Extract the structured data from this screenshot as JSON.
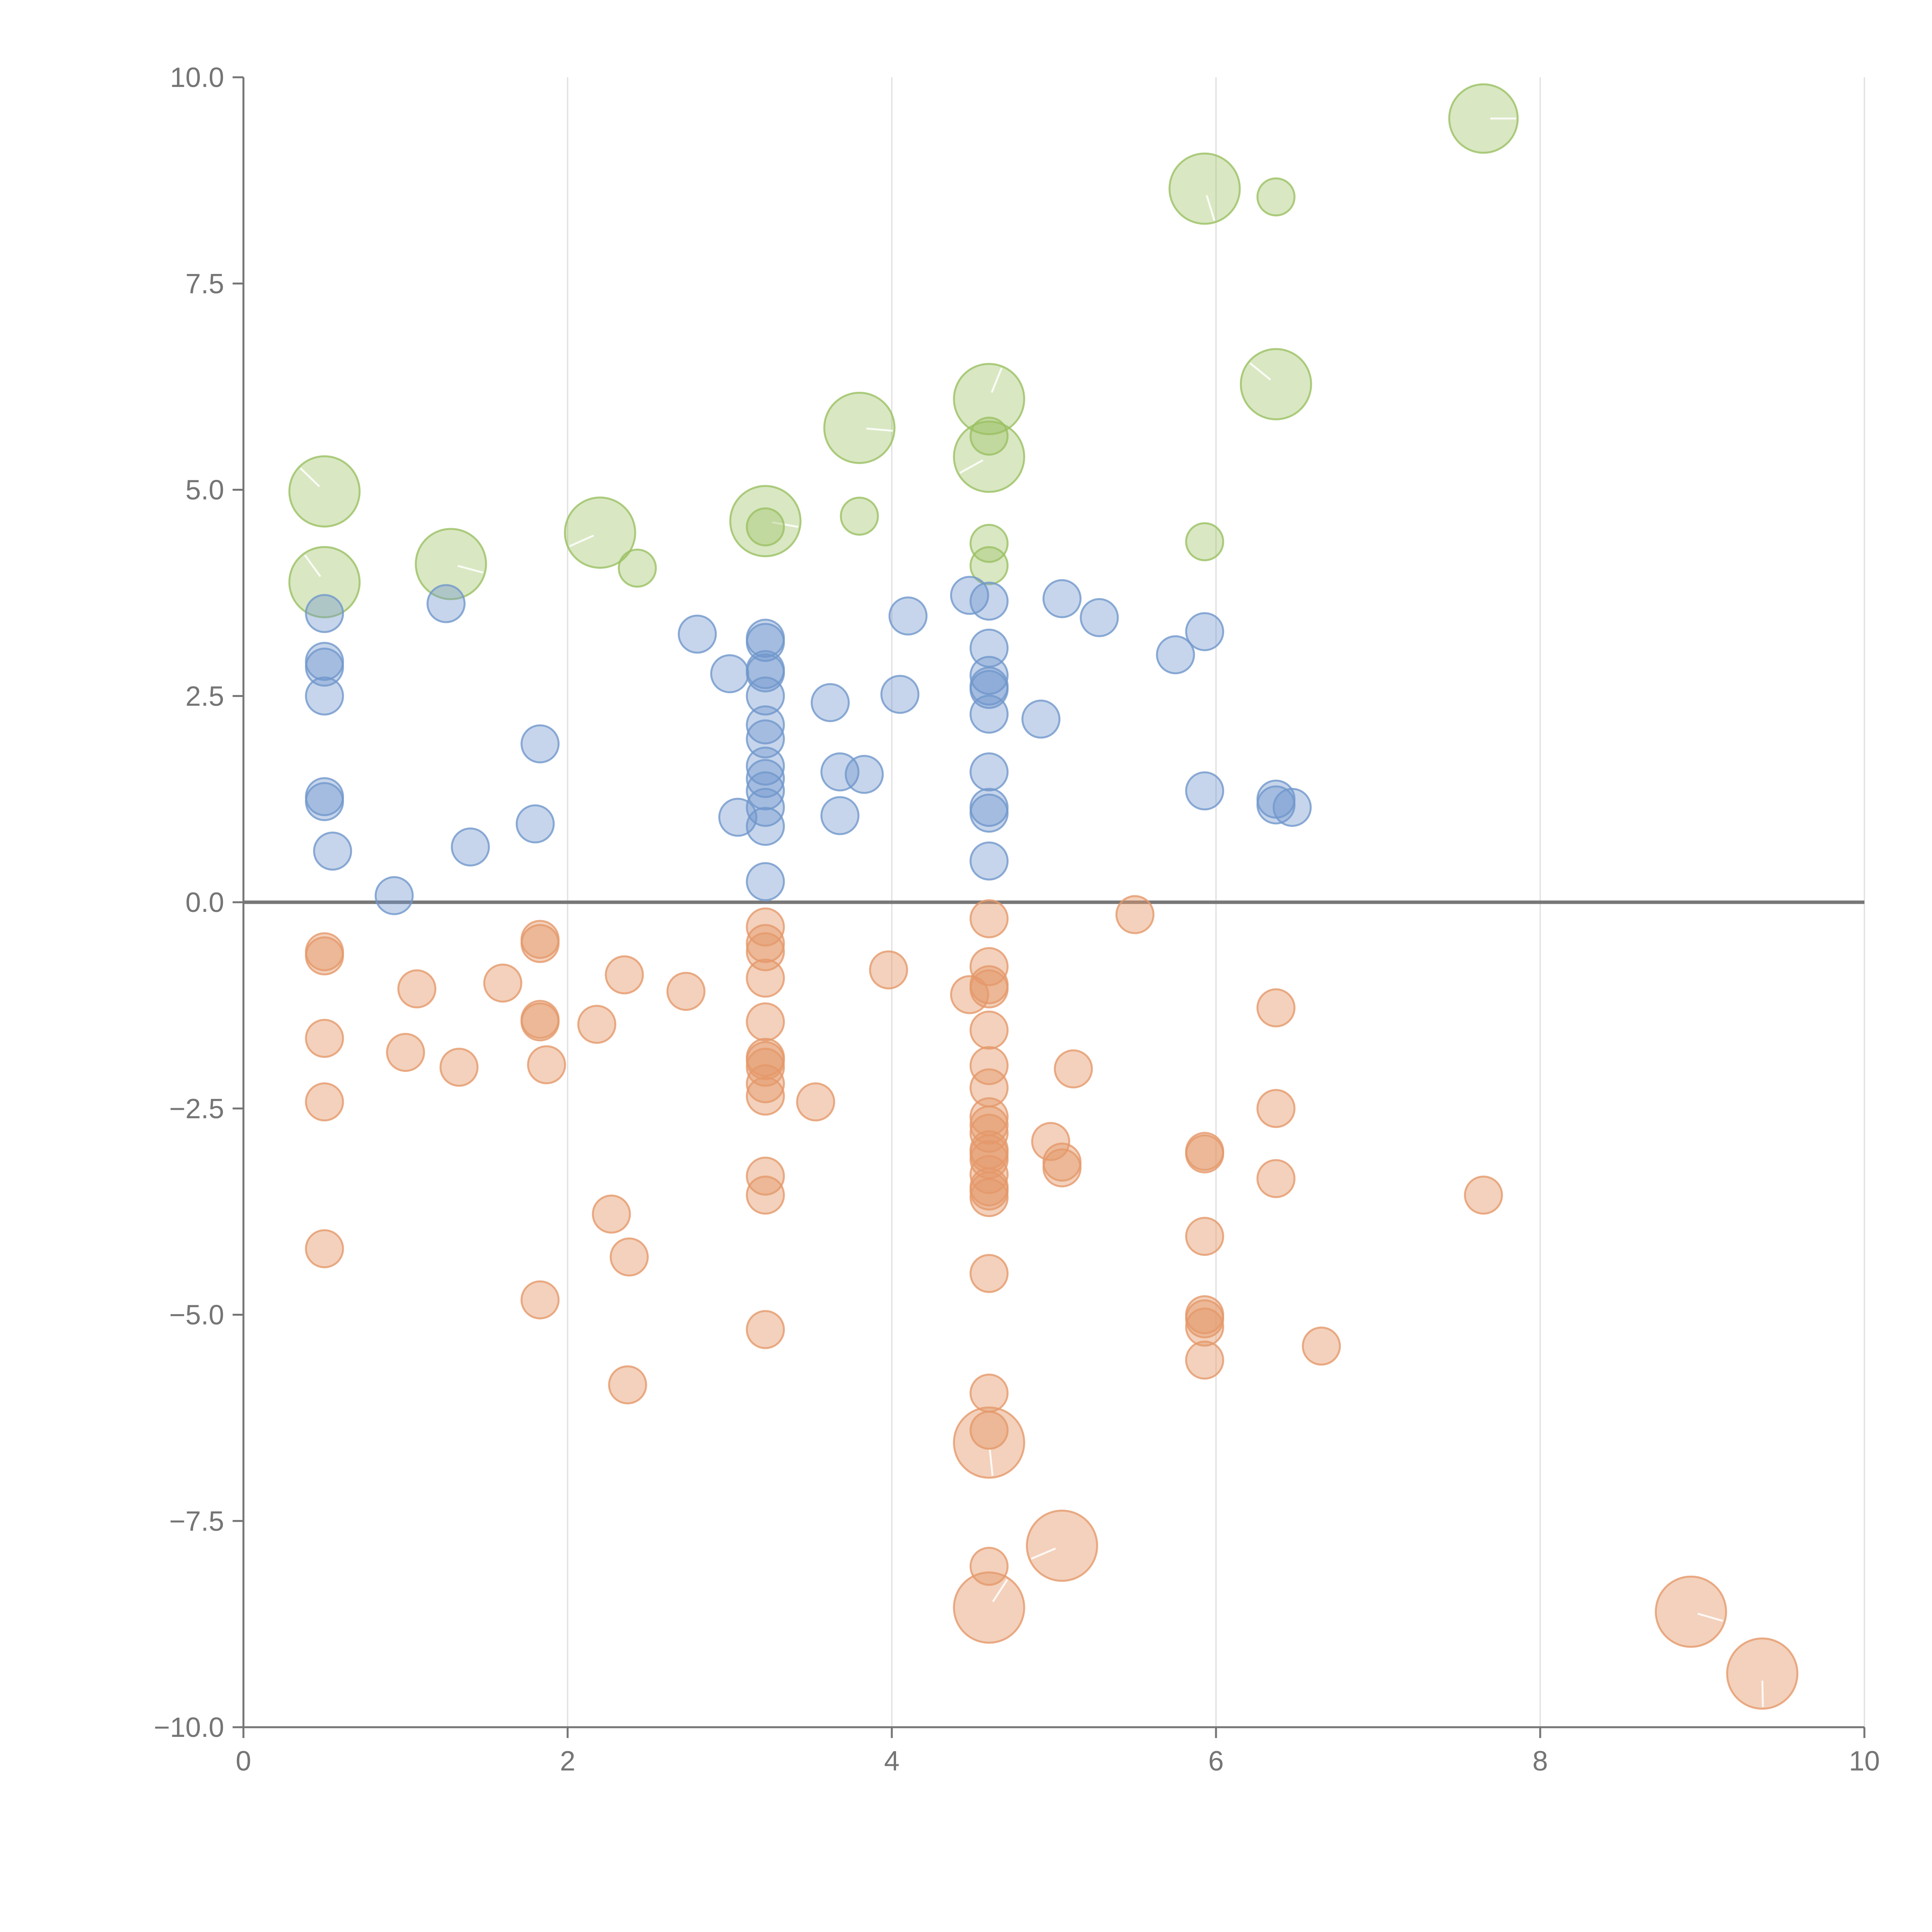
{
  "chart_data": {
    "type": "scatter",
    "title": "",
    "xlabel": "",
    "ylabel": "",
    "xlim": [
      0,
      10
    ],
    "ylim": [
      -10,
      10
    ],
    "x_ticks": [
      0,
      2,
      4,
      6,
      8,
      10
    ],
    "x_tick_labels": [
      "0",
      "2",
      "4",
      "6",
      "8",
      "10"
    ],
    "y_ticks": [
      10,
      7.5,
      5,
      2.5,
      0,
      -2.5,
      -5,
      -7.5,
      -10
    ],
    "y_tick_labels": [
      "10.0",
      "7.5",
      "5.0",
      "2.5",
      "0.0",
      "−2.5",
      "−5.0",
      "−7.5",
      "−10.0"
    ],
    "vertical_grid": true,
    "horizontal_grid": false,
    "reference_line_y": 0,
    "size_scale": "relative bubble size, 1 = smallest",
    "series": [
      {
        "name": "green",
        "color": "#9ac061",
        "fill_opacity": 0.38,
        "points": [
          [
            7.65,
            9.5,
            1.9
          ],
          [
            5.93,
            8.65,
            2.0
          ],
          [
            6.37,
            8.55,
            1.0
          ],
          [
            6.37,
            6.28,
            2.0
          ],
          [
            4.6,
            6.1,
            2.0
          ],
          [
            3.8,
            5.75,
            2.0
          ],
          [
            4.6,
            5.65,
            1.0
          ],
          [
            4.6,
            5.4,
            2.0
          ],
          [
            0.5,
            4.98,
            2.0
          ],
          [
            3.8,
            4.68,
            1.0
          ],
          [
            3.22,
            4.62,
            2.0
          ],
          [
            3.22,
            4.55,
            1.0
          ],
          [
            2.2,
            4.48,
            2.0
          ],
          [
            4.6,
            4.35,
            1.0
          ],
          [
            5.93,
            4.37,
            1.0
          ],
          [
            1.28,
            4.1,
            2.0
          ],
          [
            4.6,
            4.08,
            1.0
          ],
          [
            2.43,
            4.05,
            1.0
          ],
          [
            0.5,
            3.88,
            2.0
          ]
        ]
      },
      {
        "name": "blue",
        "color": "#7197cc",
        "fill_opacity": 0.4,
        "points": [
          [
            4.48,
            3.72,
            1.0
          ],
          [
            5.05,
            3.68,
            1.0
          ],
          [
            4.6,
            3.65,
            1.0
          ],
          [
            1.25,
            3.62,
            1.0
          ],
          [
            0.5,
            3.5,
            1.0
          ],
          [
            4.1,
            3.47,
            1.0
          ],
          [
            5.28,
            3.45,
            1.0
          ],
          [
            5.93,
            3.28,
            1.0
          ],
          [
            2.8,
            3.25,
            1.0
          ],
          [
            3.22,
            3.2,
            1.0
          ],
          [
            3.22,
            3.15,
            1.0
          ],
          [
            4.6,
            3.08,
            1.0
          ],
          [
            5.75,
            3.0,
            1.0
          ],
          [
            0.5,
            2.92,
            1.0
          ],
          [
            0.5,
            2.85,
            1.0
          ],
          [
            3.22,
            2.82,
            1.0
          ],
          [
            3.22,
            2.78,
            1.0
          ],
          [
            3.0,
            2.77,
            1.0
          ],
          [
            4.6,
            2.75,
            1.0
          ],
          [
            4.6,
            2.62,
            1.0
          ],
          [
            4.6,
            2.58,
            1.0
          ],
          [
            4.05,
            2.52,
            1.0
          ],
          [
            0.5,
            2.5,
            1.0
          ],
          [
            3.22,
            2.5,
            1.0
          ],
          [
            3.62,
            2.42,
            1.0
          ],
          [
            4.6,
            2.28,
            1.0
          ],
          [
            4.92,
            2.22,
            1.0
          ],
          [
            3.22,
            2.15,
            1.0
          ],
          [
            3.22,
            1.98,
            1.0
          ],
          [
            1.83,
            1.92,
            1.0
          ],
          [
            3.22,
            1.65,
            1.0
          ],
          [
            4.6,
            1.58,
            1.0
          ],
          [
            3.68,
            1.58,
            1.0
          ],
          [
            3.83,
            1.55,
            1.0
          ],
          [
            3.22,
            1.5,
            1.0
          ],
          [
            3.22,
            1.35,
            1.0
          ],
          [
            5.93,
            1.35,
            1.0
          ],
          [
            0.5,
            1.28,
            1.0
          ],
          [
            6.37,
            1.25,
            1.0
          ],
          [
            0.5,
            1.22,
            1.0
          ],
          [
            6.37,
            1.18,
            1.0
          ],
          [
            6.47,
            1.15,
            1.0
          ],
          [
            3.22,
            1.15,
            1.0
          ],
          [
            4.6,
            1.15,
            1.0
          ],
          [
            4.6,
            1.08,
            1.0
          ],
          [
            3.68,
            1.05,
            1.0
          ],
          [
            3.05,
            1.03,
            1.0
          ],
          [
            1.8,
            0.95,
            1.0
          ],
          [
            3.22,
            0.92,
            1.0
          ],
          [
            1.4,
            0.67,
            1.0
          ],
          [
            0.55,
            0.62,
            1.0
          ],
          [
            4.6,
            0.5,
            1.0
          ],
          [
            3.22,
            0.25,
            1.0
          ],
          [
            0.93,
            0.08,
            1.0
          ]
        ]
      },
      {
        "name": "orange",
        "color": "#e5996a",
        "fill_opacity": 0.45,
        "points": [
          [
            5.5,
            -0.15,
            1.0
          ],
          [
            4.6,
            -0.2,
            1.0
          ],
          [
            3.22,
            -0.3,
            1.0
          ],
          [
            1.83,
            -0.45,
            1.0
          ],
          [
            1.83,
            -0.5,
            1.0
          ],
          [
            3.22,
            -0.5,
            1.0
          ],
          [
            3.22,
            -0.6,
            1.0
          ],
          [
            0.5,
            -0.6,
            1.0
          ],
          [
            0.5,
            -0.65,
            1.0
          ],
          [
            4.6,
            -0.78,
            1.0
          ],
          [
            3.98,
            -0.82,
            1.0
          ],
          [
            2.35,
            -0.88,
            1.0
          ],
          [
            3.22,
            -0.92,
            1.0
          ],
          [
            1.6,
            -0.98,
            1.0
          ],
          [
            4.6,
            -1.0,
            1.0
          ],
          [
            1.07,
            -1.05,
            1.0
          ],
          [
            4.6,
            -1.05,
            1.0
          ],
          [
            2.73,
            -1.08,
            1.0
          ],
          [
            4.48,
            -1.12,
            1.0
          ],
          [
            6.37,
            -1.28,
            1.0
          ],
          [
            1.83,
            -1.42,
            1.0
          ],
          [
            1.83,
            -1.45,
            1.0
          ],
          [
            3.22,
            -1.45,
            1.0
          ],
          [
            2.18,
            -1.48,
            1.0
          ],
          [
            4.6,
            -1.55,
            1.0
          ],
          [
            0.5,
            -1.65,
            1.0
          ],
          [
            1.0,
            -1.82,
            1.0
          ],
          [
            3.22,
            -1.88,
            1.0
          ],
          [
            3.22,
            -1.92,
            1.0
          ],
          [
            1.87,
            -1.97,
            1.0
          ],
          [
            4.6,
            -1.98,
            1.0
          ],
          [
            3.22,
            -2.0,
            1.0
          ],
          [
            1.33,
            -2.0,
            1.0
          ],
          [
            5.12,
            -2.02,
            1.0
          ],
          [
            3.22,
            -2.2,
            1.0
          ],
          [
            4.6,
            -2.25,
            1.0
          ],
          [
            3.22,
            -2.35,
            1.0
          ],
          [
            3.53,
            -2.42,
            1.0
          ],
          [
            0.5,
            -2.42,
            1.0
          ],
          [
            6.37,
            -2.5,
            1.0
          ],
          [
            4.6,
            -2.6,
            1.0
          ],
          [
            4.6,
            -2.7,
            1.0
          ],
          [
            4.6,
            -2.8,
            1.0
          ],
          [
            4.98,
            -2.9,
            1.0
          ],
          [
            4.6,
            -3.0,
            1.0
          ],
          [
            4.6,
            -3.05,
            1.0
          ],
          [
            5.93,
            -3.02,
            1.0
          ],
          [
            5.93,
            -3.05,
            1.0
          ],
          [
            4.6,
            -3.12,
            1.0
          ],
          [
            5.05,
            -3.15,
            1.0
          ],
          [
            5.05,
            -3.22,
            1.0
          ],
          [
            4.6,
            -3.3,
            1.0
          ],
          [
            3.22,
            -3.32,
            1.0
          ],
          [
            6.37,
            -3.35,
            1.0
          ],
          [
            4.6,
            -3.45,
            1.0
          ],
          [
            4.6,
            -3.5,
            1.0
          ],
          [
            3.22,
            -3.55,
            1.0
          ],
          [
            7.65,
            -3.55,
            1.0
          ],
          [
            4.6,
            -3.58,
            1.0
          ],
          [
            2.27,
            -3.78,
            1.0
          ],
          [
            5.93,
            -4.05,
            1.0
          ],
          [
            0.5,
            -4.2,
            1.0
          ],
          [
            2.38,
            -4.3,
            1.0
          ],
          [
            4.6,
            -4.5,
            1.0
          ],
          [
            1.83,
            -4.82,
            1.0
          ],
          [
            5.93,
            -5.0,
            1.0
          ],
          [
            5.93,
            -5.05,
            1.0
          ],
          [
            5.93,
            -5.15,
            1.0
          ],
          [
            3.22,
            -5.18,
            1.0
          ],
          [
            6.65,
            -5.38,
            1.0
          ],
          [
            5.93,
            -5.55,
            1.0
          ],
          [
            2.37,
            -5.85,
            1.0
          ],
          [
            4.6,
            -5.95,
            1.0
          ],
          [
            4.6,
            -6.4,
            1.0
          ],
          [
            4.6,
            -6.55,
            2.0
          ],
          [
            5.05,
            -7.8,
            2.0
          ],
          [
            4.6,
            -8.05,
            1.0
          ],
          [
            4.6,
            -8.55,
            2.0
          ],
          [
            8.93,
            -8.6,
            2.0
          ],
          [
            9.37,
            -9.35,
            2.0
          ]
        ]
      }
    ]
  }
}
